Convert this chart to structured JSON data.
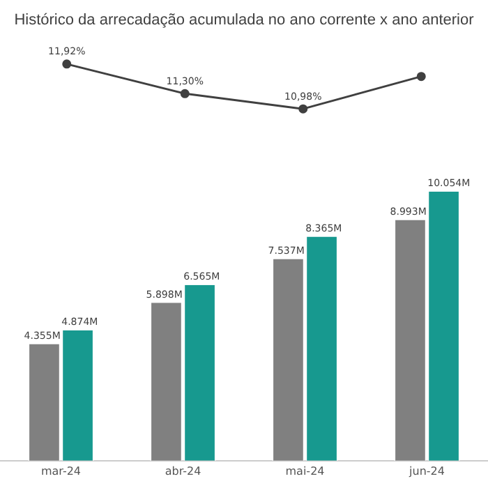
{
  "chart_data": [
    {
      "type": "line",
      "title": "Histórico da arrecadação acumulada no ano corrente x ano anterior",
      "categories": [
        null,
        null,
        null,
        null
      ],
      "series": [
        {
          "color": "#404040",
          "values": [
            11.92,
            11.3,
            10.98,
            11.66
          ],
          "value_labels": [
            "11,92%",
            "11,30%",
            "10,98%",
            null
          ]
        }
      ],
      "marker": "circle",
      "tick_labels": false,
      "grid": false,
      "legend": false
    },
    {
      "type": "bar",
      "categories": [
        "mar-24",
        "abr-24",
        "mai-24",
        "jun-24"
      ],
      "series": [
        {
          "color": "#808080",
          "values": [
            4355,
            5898,
            7537,
            8993
          ],
          "value_labels": [
            "4.355M",
            "5.898M",
            "7.537M",
            "8.993M"
          ]
        },
        {
          "color": "#17998f",
          "values": [
            4874,
            6565,
            8365,
            10054
          ],
          "value_labels": [
            "4.874M",
            "6.565M",
            "8.365M",
            "10.054M"
          ]
        }
      ],
      "tick_labels": "x",
      "grid": false,
      "legend": false
    }
  ]
}
